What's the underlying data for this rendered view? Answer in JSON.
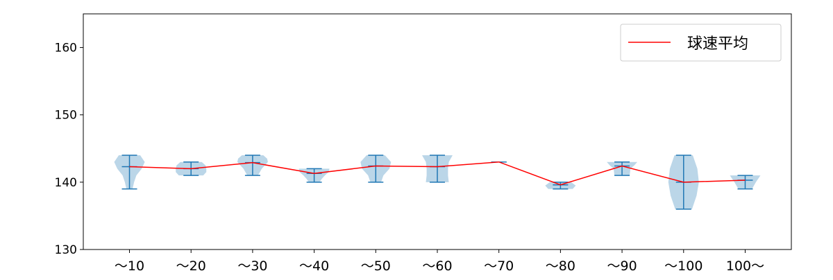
{
  "chart_data": {
    "type": "violin",
    "title": "",
    "xlabel": "",
    "ylabel": "",
    "ylim": [
      130,
      165
    ],
    "yticks": [
      130,
      140,
      150,
      160
    ],
    "categories": [
      "～10",
      "～20",
      "～30",
      "～40",
      "～50",
      "～60",
      "～70",
      "～80",
      "～90",
      "～100",
      "100～"
    ],
    "min": [
      139,
      141,
      141,
      140,
      140,
      140,
      143,
      139,
      141,
      136,
      139
    ],
    "max": [
      144,
      143,
      144,
      142,
      144,
      144,
      143,
      140,
      143,
      144,
      141
    ],
    "mean": [
      142.3,
      142.0,
      142.9,
      141.3,
      142.4,
      142.3,
      143.0,
      139.6,
      142.4,
      140.0,
      140.3
    ],
    "density": [
      [
        [
          139,
          0.2
        ],
        [
          140,
          0.3
        ],
        [
          141,
          0.45
        ],
        [
          142,
          0.8
        ],
        [
          143,
          1.0
        ],
        [
          144,
          0.7
        ]
      ],
      [
        [
          141,
          0.8
        ],
        [
          141.5,
          1.0
        ],
        [
          142,
          1.0
        ],
        [
          142.5,
          0.95
        ],
        [
          143,
          0.7
        ]
      ],
      [
        [
          141,
          0.35
        ],
        [
          142,
          0.6
        ],
        [
          143,
          1.0
        ],
        [
          143.5,
          0.95
        ],
        [
          144,
          0.7
        ]
      ],
      [
        [
          140,
          0.35
        ],
        [
          140.5,
          0.5
        ],
        [
          141,
          0.7
        ],
        [
          141.5,
          0.95
        ],
        [
          142,
          1.0
        ]
      ],
      [
        [
          140,
          0.35
        ],
        [
          141,
          0.5
        ],
        [
          142,
          0.9
        ],
        [
          143,
          1.0
        ],
        [
          144,
          0.6
        ]
      ],
      [
        [
          140,
          0.75
        ],
        [
          141,
          0.7
        ],
        [
          142,
          0.7
        ],
        [
          143,
          0.75
        ],
        [
          144,
          1.0
        ]
      ],
      [],
      [
        [
          139,
          0.8
        ],
        [
          139.5,
          1.0
        ],
        [
          140,
          0.7
        ]
      ],
      [
        [
          141,
          0.5
        ],
        [
          142,
          0.55
        ],
        [
          142.5,
          0.8
        ],
        [
          143,
          1.0
        ]
      ],
      [
        [
          136,
          0.55
        ],
        [
          138,
          0.85
        ],
        [
          140,
          1.0
        ],
        [
          142,
          0.9
        ],
        [
          144,
          0.6
        ]
      ],
      [
        [
          139,
          0.45
        ],
        [
          140,
          0.7
        ],
        [
          141,
          1.0
        ]
      ]
    ],
    "legend": {
      "entries": [
        "球速平均"
      ],
      "placement": "top-right"
    },
    "colors": {
      "violin": "#1f77b4",
      "mean_line": "#ff0000"
    },
    "grid": false
  }
}
